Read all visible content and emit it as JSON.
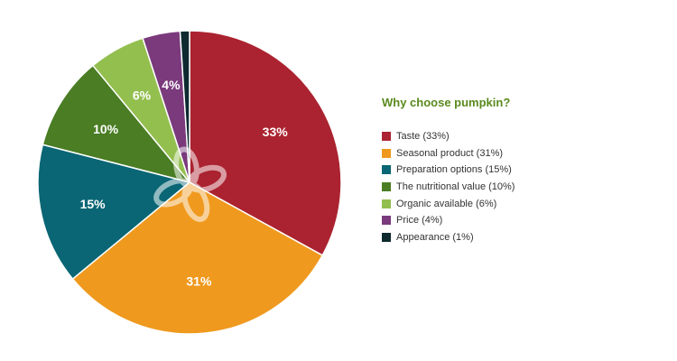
{
  "chart_data": {
    "type": "pie",
    "title": "Why choose pumpkin?",
    "legend_position": "right",
    "slices": [
      {
        "label": "Taste (33%)",
        "value": 33,
        "display": "33%",
        "color": "#ab2330"
      },
      {
        "label": "Seasonal product (31%)",
        "value": 31,
        "display": "31%",
        "color": "#ef991e"
      },
      {
        "label": "Preparation options (15%)",
        "value": 15,
        "display": "15%",
        "color": "#0a6674"
      },
      {
        "label": "The nutritional value (10%)",
        "value": 10,
        "display": "10%",
        "color": "#4a7d24"
      },
      {
        "label": "Organic available (6%)",
        "value": 6,
        "display": "6%",
        "color": "#93bf4f"
      },
      {
        "label": "Price (4%)",
        "value": 4,
        "display": "4%",
        "color": "#7a3a7c"
      },
      {
        "label": "Appearance (1%)",
        "value": 1,
        "display": "",
        "color": "#0e2a30"
      }
    ]
  },
  "watermark": {
    "icon": "clover-logo-icon"
  }
}
